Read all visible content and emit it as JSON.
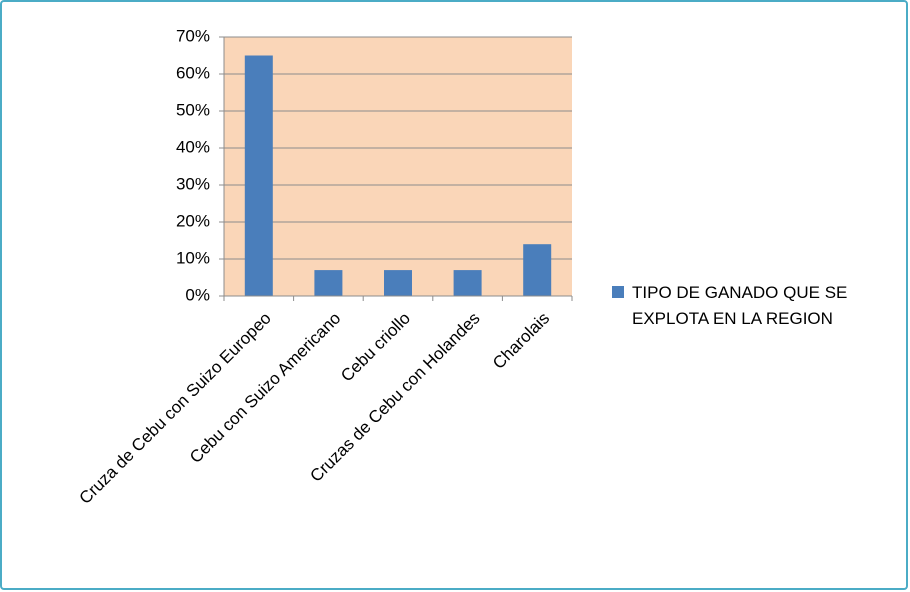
{
  "chart_data": {
    "type": "bar",
    "categories": [
      "Cruza de Cebu con Suizo Europeo",
      "Cebu con Suizo Americano",
      "Cebu criollo",
      "Cruzas de Cebu con Holandes",
      "Charolais"
    ],
    "series": [
      {
        "name": "TIPO DE GANADO QUE SE EXPLOTA EN LA REGION",
        "color": "#4a7ebb",
        "values": [
          65,
          7,
          7,
          7,
          14
        ]
      }
    ],
    "ylim": [
      0,
      70
    ],
    "yticks": [
      {
        "value": 0,
        "label": "0%"
      },
      {
        "value": 10,
        "label": "10%"
      },
      {
        "value": 20,
        "label": "20%"
      },
      {
        "value": 30,
        "label": "30%"
      },
      {
        "value": 40,
        "label": "40%"
      },
      {
        "value": 50,
        "label": "50%"
      },
      {
        "value": 60,
        "label": "60%"
      },
      {
        "value": 70,
        "label": "70%"
      }
    ],
    "grid": true,
    "legend": "right",
    "plot_background": "#fad6b8"
  }
}
